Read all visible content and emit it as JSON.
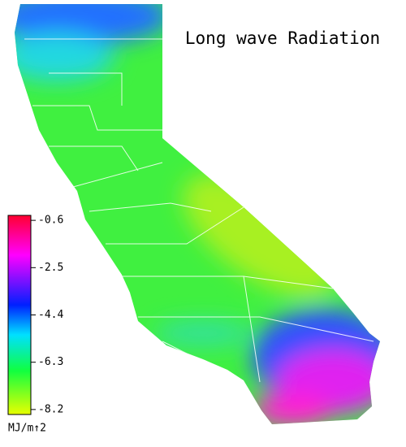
{
  "title": "Long wave Radiation",
  "colorbar": {
    "ticks": [
      -0.6,
      -2.5,
      -4.4,
      -6.3,
      -8.2
    ],
    "range": [
      -8.4,
      -0.4
    ],
    "units": "MJ/m↑2"
  }
}
